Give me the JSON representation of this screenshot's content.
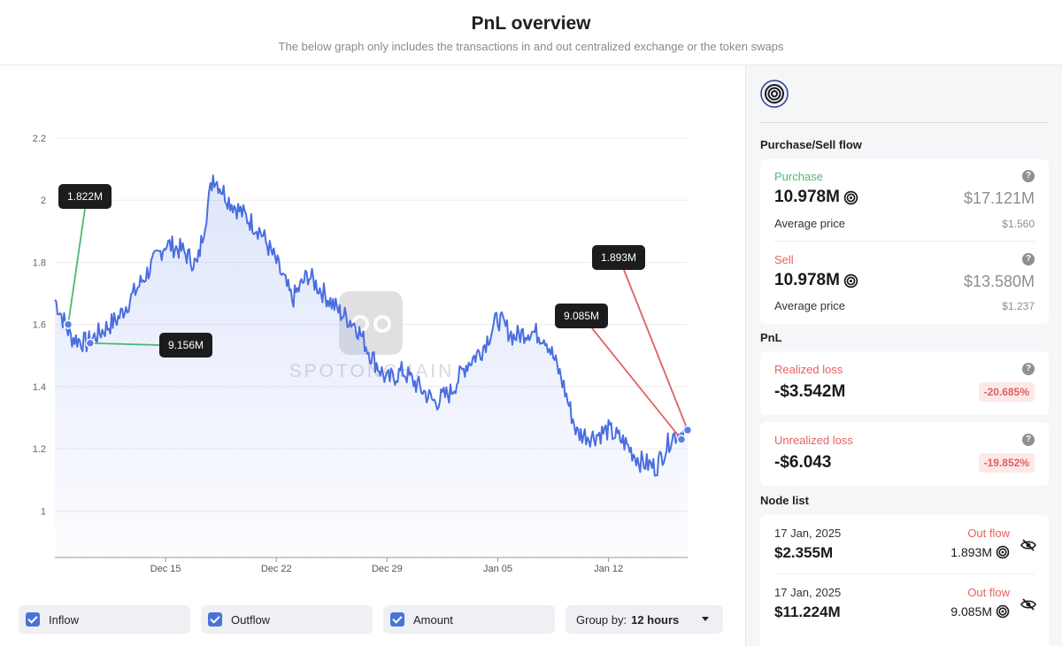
{
  "header": {
    "title": "PnL overview",
    "subtitle": "The below graph only includes the transactions in and out centralized exchange or the token swaps"
  },
  "watermark": "SPOTONCHAIN",
  "chart_data": {
    "type": "line",
    "y_ticks": [
      "2.2",
      "2",
      "1.8",
      "1.6",
      "1.4",
      "1.2",
      "1"
    ],
    "ylim": [
      0.85,
      2.2
    ],
    "x_ticks": [
      "Dec 15",
      "Dec 22",
      "Dec 29",
      "Jan 05",
      "Jan 12"
    ],
    "xlabel": "",
    "ylabel": "",
    "grid": true,
    "line_color": "#4a6ee0",
    "series": [
      {
        "x": [
          "Dec 8",
          "Dec 9",
          "Dec 10",
          "Dec 11",
          "Dec 12",
          "Dec 13",
          "Dec 14",
          "Dec 15",
          "Dec 16",
          "Dec 17",
          "Dec 18",
          "Dec 19",
          "Dec 20",
          "Dec 21",
          "Dec 22",
          "Dec 23",
          "Dec 24",
          "Dec 25",
          "Dec 26",
          "Dec 27",
          "Dec 28",
          "Dec 29",
          "Dec 30",
          "Dec 31",
          "Jan 1",
          "Jan 2",
          "Jan 3",
          "Jan 4",
          "Jan 5",
          "Jan 6",
          "Jan 7",
          "Jan 8",
          "Jan 9",
          "Jan 10",
          "Jan 11",
          "Jan 12",
          "Jan 13",
          "Jan 14",
          "Jan 15",
          "Jan 16",
          "Jan 17"
        ],
        "values": [
          1.68,
          1.56,
          1.54,
          1.58,
          1.62,
          1.7,
          1.78,
          1.86,
          1.84,
          1.79,
          2.08,
          2.0,
          1.95,
          1.9,
          1.8,
          1.68,
          1.76,
          1.7,
          1.64,
          1.6,
          1.5,
          1.42,
          1.45,
          1.4,
          1.35,
          1.38,
          1.47,
          1.52,
          1.62,
          1.56,
          1.58,
          1.56,
          1.43,
          1.25,
          1.24,
          1.26,
          1.22,
          1.16,
          1.14,
          1.24,
          1.26
        ]
      }
    ],
    "annotations": [
      {
        "label": "1.822M",
        "x": "Dec 8",
        "y": 1.6,
        "color": "#4cb870"
      },
      {
        "label": "9.156M",
        "x": "Dec 9",
        "y": 1.54,
        "color": "#4cb870"
      },
      {
        "label": "9.085M",
        "x": "Jan 17",
        "y": 1.23,
        "color": "#e06060"
      },
      {
        "label": "1.893M",
        "x": "Jan 17",
        "y": 1.26,
        "color": "#e06060"
      }
    ]
  },
  "controls": {
    "inflow": "Inflow",
    "outflow": "Outflow",
    "amount": "Amount",
    "group_by_label": "Group by:",
    "group_by_value": "12 hours"
  },
  "sidebar": {
    "flow_title": "Purchase/Sell flow",
    "purchase": {
      "label": "Purchase",
      "amount": "10.978M",
      "usd": "$17.121M",
      "avg_label": "Average price",
      "avg_value": "$1.560"
    },
    "sell": {
      "label": "Sell",
      "amount": "10.978M",
      "usd": "$13.580M",
      "avg_label": "Average price",
      "avg_value": "$1.237"
    },
    "pnl_title": "PnL",
    "realized": {
      "label": "Realized loss",
      "value": "-$3.542M",
      "pct": "-20.685%"
    },
    "unrealized": {
      "label": "Unrealized loss",
      "value": "-$6.043",
      "pct": "-19.852%"
    },
    "node_title": "Node list",
    "nodes": [
      {
        "date": "17 Jan, 2025",
        "amount": "$2.355M",
        "flow": "Out flow",
        "tokens": "1.893M"
      },
      {
        "date": "17 Jan, 2025",
        "amount": "$11.224M",
        "flow": "Out flow",
        "tokens": "9.085M"
      }
    ],
    "help_icon": "?"
  }
}
